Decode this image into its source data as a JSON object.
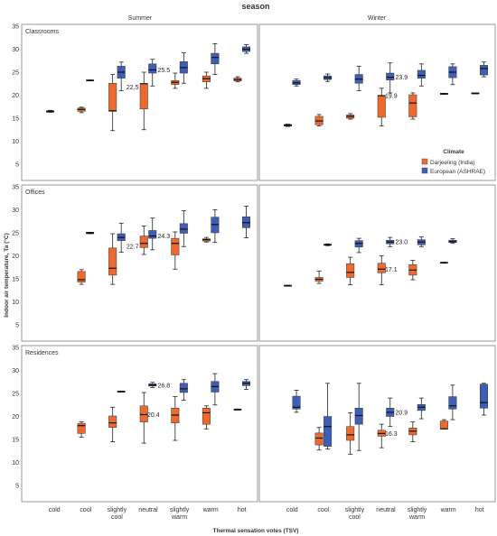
{
  "title": "season",
  "facet_columns": [
    "Summer",
    "Winter"
  ],
  "panel_rows": [
    "Classrooms",
    "Offices",
    "Residences"
  ],
  "xlabel": "Thermal sensation votes (TSV)",
  "ylabel": "Indoor air temperature, Ta (°C)",
  "legend": {
    "title": "Climate",
    "items": [
      {
        "label": "Darjeeling (India)",
        "color": "#ed6a2e"
      },
      {
        "label": "European (ASHRAE)",
        "color": "#3f5eb5"
      }
    ]
  },
  "x_ticks": [
    {
      "lines": [
        "cold"
      ]
    },
    {
      "lines": [
        "cool"
      ]
    },
    {
      "lines": [
        "slightly",
        "cool"
      ]
    },
    {
      "lines": [
        "neutral"
      ]
    },
    {
      "lines": [
        "slightly",
        "warm"
      ]
    },
    {
      "lines": [
        "warm"
      ]
    },
    {
      "lines": [
        "hot"
      ]
    }
  ],
  "y_ticks": [
    "5",
    "10",
    "15",
    "20",
    "25",
    "30",
    "35"
  ],
  "chart_data": {
    "type": "boxplot",
    "categories": [
      "cold",
      "cool",
      "slightly cool",
      "neutral",
      "slightly warm",
      "warm",
      "hot"
    ],
    "ylim": [
      5,
      35
    ],
    "series_names": [
      "Darjeeling (India)",
      "European (ASHRAE)"
    ],
    "panels": [
      {
        "row": "Classrooms",
        "season": "Summer",
        "boxes": [
          {
            "cat": 0,
            "series": 0,
            "min": 16.3,
            "q1": 16.3,
            "median": 16.5,
            "q3": 16.6,
            "max": 16.7
          },
          {
            "cat": 1,
            "series": 0,
            "min": 16.2,
            "q1": 16.5,
            "median": 16.9,
            "q3": 17.2,
            "max": 17.4
          },
          {
            "cat": 1,
            "series": 1,
            "min": 23.2,
            "q1": 23.2,
            "median": 23.2,
            "q3": 23.3,
            "max": 23.3
          },
          {
            "cat": 2,
            "series": 0,
            "min": 12.3,
            "q1": 16.5,
            "median": 16.6,
            "q3": 22.6,
            "max": 24.5
          },
          {
            "cat": 2,
            "series": 1,
            "min": 21.0,
            "q1": 23.7,
            "median": 25.0,
            "q3": 26.3,
            "max": 27.2
          },
          {
            "cat": 3,
            "series": 0,
            "min": 12.5,
            "q1": 17.0,
            "median": 22.5,
            "q3": 22.5,
            "max": 25.0
          },
          {
            "cat": 3,
            "series": 1,
            "min": 22.0,
            "q1": 24.8,
            "median": 25.5,
            "q3": 26.8,
            "max": 27.8
          },
          {
            "cat": 4,
            "series": 0,
            "min": 21.5,
            "q1": 22.3,
            "median": 22.8,
            "q3": 23.2,
            "max": 24.8
          },
          {
            "cat": 4,
            "series": 1,
            "min": 22.6,
            "q1": 24.8,
            "median": 26.0,
            "q3": 27.3,
            "max": 29.2
          },
          {
            "cat": 5,
            "series": 0,
            "min": 21.5,
            "q1": 22.9,
            "median": 23.6,
            "q3": 24.2,
            "max": 25.0
          },
          {
            "cat": 5,
            "series": 1,
            "min": 24.5,
            "q1": 26.8,
            "median": 28.2,
            "q3": 29.1,
            "max": 31.2
          },
          {
            "cat": 6,
            "series": 0,
            "min": 22.9,
            "q1": 23.1,
            "median": 23.4,
            "q3": 23.7,
            "max": 24.0
          },
          {
            "cat": 6,
            "series": 1,
            "min": 29.1,
            "q1": 29.5,
            "median": 30.0,
            "q3": 30.5,
            "max": 31.0
          }
        ],
        "annotations": [
          {
            "cat": 3,
            "text": "25.5",
            "value": 25.5,
            "side": "right"
          },
          {
            "cat": 3,
            "text": "22.5",
            "value": 22.5,
            "side": "left"
          }
        ]
      },
      {
        "row": "Classrooms",
        "season": "Winter",
        "boxes": [
          {
            "cat": 0,
            "series": 0,
            "min": 13.2,
            "q1": 13.3,
            "median": 13.5,
            "q3": 13.6,
            "max": 13.7
          },
          {
            "cat": 0,
            "series": 1,
            "min": 22.0,
            "q1": 22.3,
            "median": 22.7,
            "q3": 23.2,
            "max": 23.5
          },
          {
            "cat": 1,
            "series": 0,
            "min": 13.3,
            "q1": 13.6,
            "median": 14.4,
            "q3": 15.4,
            "max": 15.8
          },
          {
            "cat": 1,
            "series": 1,
            "min": 23.0,
            "q1": 23.4,
            "median": 23.8,
            "q3": 24.2,
            "max": 24.6
          },
          {
            "cat": 2,
            "series": 0,
            "min": 14.8,
            "q1": 15.0,
            "median": 15.4,
            "q3": 15.7,
            "max": 16.0
          },
          {
            "cat": 2,
            "series": 1,
            "min": 21.0,
            "q1": 22.6,
            "median": 23.5,
            "q3": 24.5,
            "max": 26.3
          },
          {
            "cat": 3,
            "series": 0,
            "min": 13.3,
            "q1": 15.2,
            "median": 19.9,
            "q3": 19.9,
            "max": 21.5
          },
          {
            "cat": 3,
            "series": 1,
            "min": 20.5,
            "q1": 23.3,
            "median": 23.9,
            "q3": 24.8,
            "max": 27.0
          },
          {
            "cat": 4,
            "series": 0,
            "min": 14.8,
            "q1": 15.3,
            "median": 18.3,
            "q3": 20.1,
            "max": 20.5
          },
          {
            "cat": 4,
            "series": 1,
            "min": 22.0,
            "q1": 23.7,
            "median": 24.3,
            "q3": 25.4,
            "max": 26.8
          },
          {
            "cat": 5,
            "series": 0,
            "min": 20.2,
            "q1": 20.2,
            "median": 20.3,
            "q3": 20.4,
            "max": 20.4
          },
          {
            "cat": 5,
            "series": 1,
            "min": 22.3,
            "q1": 23.8,
            "median": 25.0,
            "q3": 26.2,
            "max": 26.8
          },
          {
            "cat": 6,
            "series": 0,
            "min": 20.3,
            "q1": 20.3,
            "median": 20.4,
            "q3": 20.5,
            "max": 20.5
          },
          {
            "cat": 6,
            "series": 1,
            "min": 24.0,
            "q1": 24.4,
            "median": 25.8,
            "q3": 26.5,
            "max": 27.2
          }
        ],
        "annotations": [
          {
            "cat": 3,
            "text": "23.9",
            "value": 23.9,
            "side": "right"
          },
          {
            "cat": 3,
            "text": "19.9",
            "value": 19.9,
            "side": "left-under"
          }
        ]
      },
      {
        "row": "Offices",
        "season": "Summer",
        "boxes": [
          {
            "cat": 1,
            "series": 0,
            "min": 13.8,
            "q1": 14.3,
            "median": 14.8,
            "q3": 16.6,
            "max": 17.0
          },
          {
            "cat": 1,
            "series": 1,
            "min": 24.8,
            "q1": 24.8,
            "median": 25.0,
            "q3": 25.1,
            "max": 25.1
          },
          {
            "cat": 2,
            "series": 0,
            "min": 13.8,
            "q1": 15.8,
            "median": 17.3,
            "q3": 21.7,
            "max": 24.8
          },
          {
            "cat": 2,
            "series": 1,
            "min": 20.8,
            "q1": 23.3,
            "median": 24.0,
            "q3": 24.8,
            "max": 27.1
          },
          {
            "cat": 3,
            "series": 0,
            "min": 20.3,
            "q1": 21.8,
            "median": 22.7,
            "q3": 24.3,
            "max": 26.5
          },
          {
            "cat": 3,
            "series": 1,
            "min": 21.3,
            "q1": 23.8,
            "median": 24.3,
            "q3": 25.5,
            "max": 28.2
          },
          {
            "cat": 4,
            "series": 0,
            "min": 17.1,
            "q1": 20.2,
            "median": 22.7,
            "q3": 23.8,
            "max": 25.2
          },
          {
            "cat": 4,
            "series": 1,
            "min": 22.0,
            "q1": 24.9,
            "median": 25.8,
            "q3": 27.0,
            "max": 29.8
          },
          {
            "cat": 5,
            "series": 0,
            "min": 23.0,
            "q1": 23.2,
            "median": 23.5,
            "q3": 23.7,
            "max": 24.0
          },
          {
            "cat": 5,
            "series": 1,
            "min": 22.9,
            "q1": 25.0,
            "median": 26.8,
            "q3": 28.4,
            "max": 30.0
          },
          {
            "cat": 6,
            "series": 1,
            "min": 23.9,
            "q1": 26.1,
            "median": 27.2,
            "q3": 28.5,
            "max": 30.8
          }
        ],
        "annotations": [
          {
            "cat": 3,
            "text": "24.3",
            "value": 24.3,
            "side": "right"
          },
          {
            "cat": 3,
            "text": "22.7",
            "value": 22.7,
            "side": "left"
          }
        ]
      },
      {
        "row": "Offices",
        "season": "Winter",
        "boxes": [
          {
            "cat": 0,
            "series": 0,
            "min": 13.4,
            "q1": 13.4,
            "median": 13.5,
            "q3": 13.5,
            "max": 13.6
          },
          {
            "cat": 1,
            "series": 0,
            "min": 14.0,
            "q1": 14.5,
            "median": 14.9,
            "q3": 15.3,
            "max": 16.7
          },
          {
            "cat": 1,
            "series": 1,
            "min": 22.2,
            "q1": 22.3,
            "median": 22.4,
            "q3": 22.5,
            "max": 22.6
          },
          {
            "cat": 2,
            "series": 0,
            "min": 13.7,
            "q1": 15.3,
            "median": 16.4,
            "q3": 18.3,
            "max": 19.7
          },
          {
            "cat": 2,
            "series": 1,
            "min": 20.7,
            "q1": 21.9,
            "median": 22.7,
            "q3": 23.3,
            "max": 23.8
          },
          {
            "cat": 3,
            "series": 0,
            "min": 13.7,
            "q1": 16.3,
            "median": 17.1,
            "q3": 18.4,
            "max": 20.0
          },
          {
            "cat": 3,
            "series": 1,
            "min": 22.0,
            "q1": 22.6,
            "median": 23.0,
            "q3": 23.4,
            "max": 24.0
          },
          {
            "cat": 4,
            "series": 0,
            "min": 14.8,
            "q1": 15.8,
            "median": 16.9,
            "q3": 18.1,
            "max": 19.0
          },
          {
            "cat": 4,
            "series": 1,
            "min": 22.0,
            "q1": 22.4,
            "median": 23.0,
            "q3": 23.5,
            "max": 24.1
          },
          {
            "cat": 5,
            "series": 0,
            "min": 18.4,
            "q1": 18.4,
            "median": 18.5,
            "q3": 18.5,
            "max": 18.6
          },
          {
            "cat": 5,
            "series": 1,
            "min": 22.7,
            "q1": 22.9,
            "median": 23.1,
            "q3": 23.4,
            "max": 23.7
          }
        ],
        "annotations": [
          {
            "cat": 3,
            "text": "23.0",
            "value": 23.0,
            "side": "right"
          },
          {
            "cat": 3,
            "text": "17.1",
            "value": 17.1,
            "side": "right-low"
          }
        ]
      },
      {
        "row": "Residences",
        "season": "Summer",
        "boxes": [
          {
            "cat": 1,
            "series": 0,
            "min": 15.5,
            "q1": 16.3,
            "median": 18.0,
            "q3": 18.5,
            "max": 18.8
          },
          {
            "cat": 2,
            "series": 0,
            "min": 14.5,
            "q1": 17.6,
            "median": 18.6,
            "q3": 20.1,
            "max": 22.0
          },
          {
            "cat": 2,
            "series": 1,
            "min": 25.3,
            "q1": 25.3,
            "median": 25.4,
            "q3": 25.4,
            "max": 25.5
          },
          {
            "cat": 3,
            "series": 0,
            "min": 14.2,
            "q1": 18.8,
            "median": 20.4,
            "q3": 22.3,
            "max": 25.2
          },
          {
            "cat": 3,
            "series": 1,
            "min": 26.3,
            "q1": 26.6,
            "median": 26.8,
            "q3": 27.1,
            "max": 27.4
          },
          {
            "cat": 4,
            "series": 0,
            "min": 14.8,
            "q1": 18.6,
            "median": 20.3,
            "q3": 21.8,
            "max": 24.3
          },
          {
            "cat": 4,
            "series": 1,
            "min": 23.5,
            "q1": 25.2,
            "median": 26.0,
            "q3": 27.2,
            "max": 28.0
          },
          {
            "cat": 5,
            "series": 0,
            "min": 17.3,
            "q1": 18.3,
            "median": 20.8,
            "q3": 21.8,
            "max": 22.3
          },
          {
            "cat": 5,
            "series": 1,
            "min": 22.5,
            "q1": 25.3,
            "median": 26.5,
            "q3": 27.6,
            "max": 29.3
          },
          {
            "cat": 6,
            "series": 0,
            "min": 21.4,
            "q1": 21.4,
            "median": 21.5,
            "q3": 21.5,
            "max": 21.6
          },
          {
            "cat": 6,
            "series": 1,
            "min": 25.9,
            "q1": 26.7,
            "median": 27.2,
            "q3": 27.6,
            "max": 28.0
          }
        ],
        "annotations": [
          {
            "cat": 3,
            "text": "26.8",
            "value": 26.8,
            "side": "right"
          },
          {
            "cat": 3,
            "text": "20.4",
            "value": 20.4,
            "side": "right-low"
          }
        ]
      },
      {
        "row": "Residences",
        "season": "Winter",
        "boxes": [
          {
            "cat": 0,
            "series": 1,
            "min": 20.9,
            "q1": 21.6,
            "median": 22.0,
            "q3": 24.4,
            "max": 25.7
          },
          {
            "cat": 1,
            "series": 0,
            "min": 12.7,
            "q1": 13.8,
            "median": 15.3,
            "q3": 16.4,
            "max": 17.6
          },
          {
            "cat": 1,
            "series": 1,
            "min": 12.9,
            "q1": 13.5,
            "median": 17.8,
            "q3": 20.0,
            "max": 27.2
          },
          {
            "cat": 2,
            "series": 0,
            "min": 11.8,
            "q1": 14.8,
            "median": 16.0,
            "q3": 17.8,
            "max": 20.8
          },
          {
            "cat": 2,
            "series": 1,
            "min": 12.6,
            "q1": 18.3,
            "median": 20.2,
            "q3": 21.8,
            "max": 27.2
          },
          {
            "cat": 3,
            "series": 0,
            "min": 13.2,
            "q1": 15.7,
            "median": 16.3,
            "q3": 17.0,
            "max": 18.3
          },
          {
            "cat": 3,
            "series": 1,
            "min": 17.8,
            "q1": 20.0,
            "median": 20.9,
            "q3": 21.8,
            "max": 24.0
          },
          {
            "cat": 4,
            "series": 0,
            "min": 14.5,
            "q1": 16.0,
            "median": 16.8,
            "q3": 17.5,
            "max": 18.8
          },
          {
            "cat": 4,
            "series": 1,
            "min": 19.5,
            "q1": 21.3,
            "median": 22.0,
            "q3": 22.6,
            "max": 24.0
          },
          {
            "cat": 5,
            "series": 0,
            "min": 17.3,
            "q1": 17.3,
            "median": 17.3,
            "q3": 19.0,
            "max": 19.3
          },
          {
            "cat": 5,
            "series": 1,
            "min": 19.3,
            "q1": 21.6,
            "median": 22.3,
            "q3": 24.3,
            "max": 26.8
          },
          {
            "cat": 6,
            "series": 1,
            "min": 20.3,
            "q1": 21.8,
            "median": 23.0,
            "q3": 27.0,
            "max": 27.2
          }
        ],
        "annotations": [
          {
            "cat": 3,
            "text": "20.9",
            "value": 20.9,
            "side": "right"
          },
          {
            "cat": 3,
            "text": "16.3",
            "value": 16.3,
            "side": "right-low"
          }
        ]
      }
    ]
  }
}
